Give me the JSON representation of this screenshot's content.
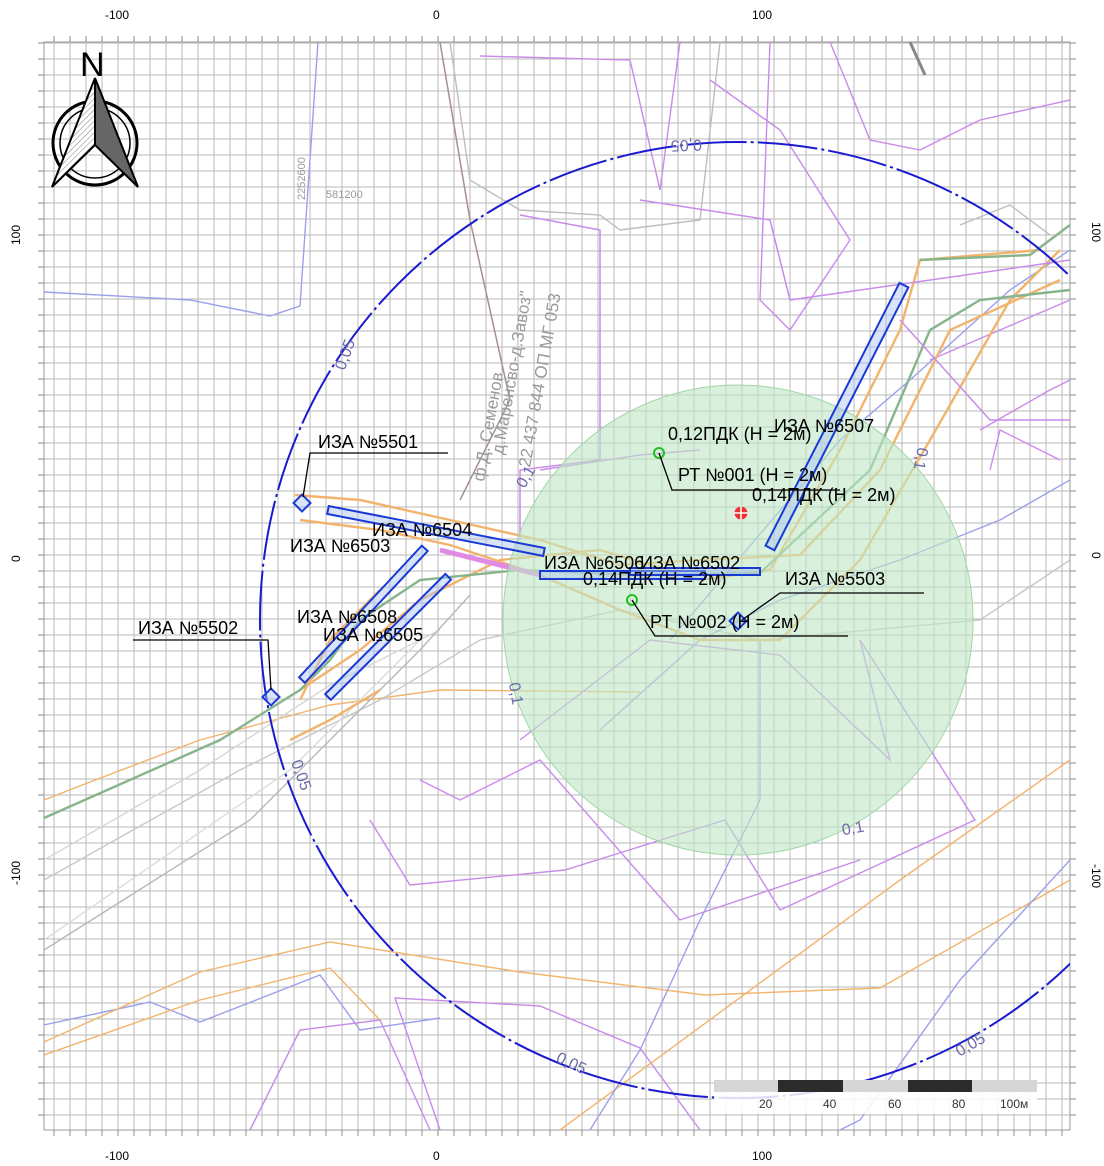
{
  "axes": {
    "top_ticks": [
      "-100",
      "0",
      "100"
    ],
    "bottom_ticks": [
      "-100",
      "0",
      "100"
    ],
    "left_ticks": [
      "100",
      "0",
      "-100"
    ],
    "right_ticks": [
      "100",
      "0",
      "-100"
    ]
  },
  "north_label": "N",
  "sources": [
    {
      "id": "iza5501",
      "label": "ИЗА №5501"
    },
    {
      "id": "iza5502",
      "label": "ИЗА №5502"
    },
    {
      "id": "iza5503",
      "label": "ИЗА №5503"
    },
    {
      "id": "iza6502",
      "label": "ИЗА №6502"
    },
    {
      "id": "iza6503",
      "label": "ИЗА №6503"
    },
    {
      "id": "iza6504",
      "label": "ИЗА №6504"
    },
    {
      "id": "iza6505",
      "label": "ИЗА №6505"
    },
    {
      "id": "iza6506",
      "label": "ИЗА №6506"
    },
    {
      "id": "iza6507",
      "label": "ИЗА №6507"
    },
    {
      "id": "iza6508",
      "label": "ИЗА №6508"
    }
  ],
  "points": [
    {
      "label": "РТ №001 (Н = 2м)",
      "value": "0,12ПДК (Н = 2м)"
    },
    {
      "label": "РТ №002 (Н = 2м)",
      "value": "0,14ПДК (Н = 2м)"
    }
  ],
  "max_point_label": "0,14ПДК (Н = 2м)",
  "isolines": {
    "outer": "0,05",
    "inner": "0,1"
  },
  "road_label_1": "д.Маренсво-д.Завоз\"",
  "road_label_2": "22 437 844 ОП МГ 053",
  "road_label_3": "ф.Д. Семенов",
  "parcel_numbers": [
    "581200",
    "2252600"
  ],
  "scale": {
    "labels": [
      "20",
      "40",
      "60",
      "80",
      "100м"
    ]
  },
  "colors": {
    "grid": "#b9b9b9",
    "circle": "#1a1ad0",
    "zone_fill": "#bfe8c4",
    "source": "#1a3ad6",
    "source_fill": "#aac3f0",
    "orange": "#f2b36c",
    "violet": "#c98bea",
    "lavender": "#8f8fe2",
    "green": "#86b58c"
  }
}
